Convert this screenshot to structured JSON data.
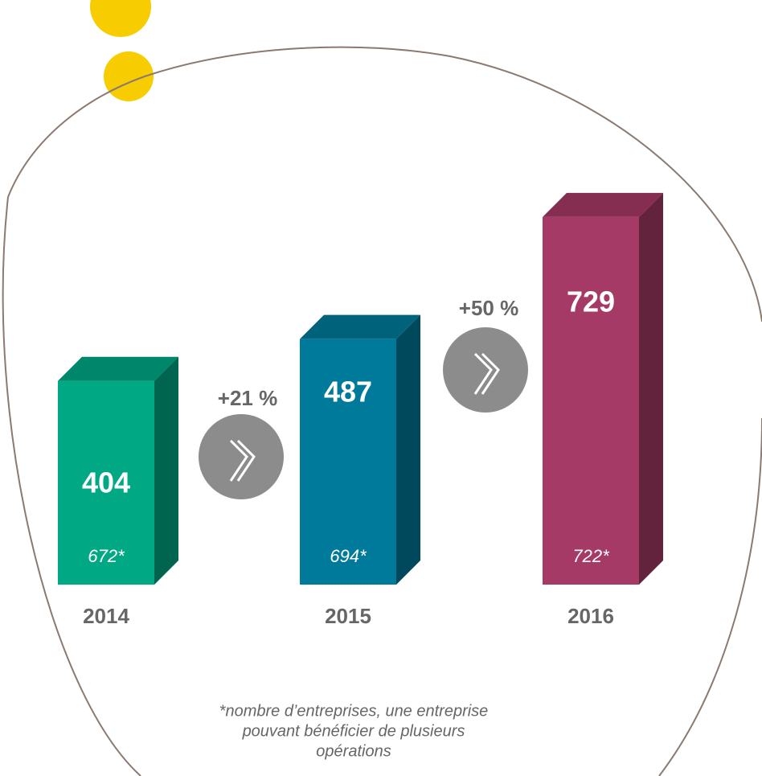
{
  "chart_data": {
    "type": "bar3d",
    "categories": [
      "2014",
      "2015",
      "2016"
    ],
    "values": [
      404,
      487,
      729
    ],
    "counts": [
      672,
      694,
      722
    ],
    "count_labels": [
      "672*",
      "694*",
      "722*"
    ],
    "colors": [
      "#00a884",
      "#007a9a",
      "#a63a66"
    ],
    "growth_labels": [
      "+21 %",
      "+50 %"
    ],
    "footnote": [
      "*nombre d’entreprises, une entreprise",
      "pouvant bénéficier de plusieurs",
      "opérations"
    ]
  }
}
